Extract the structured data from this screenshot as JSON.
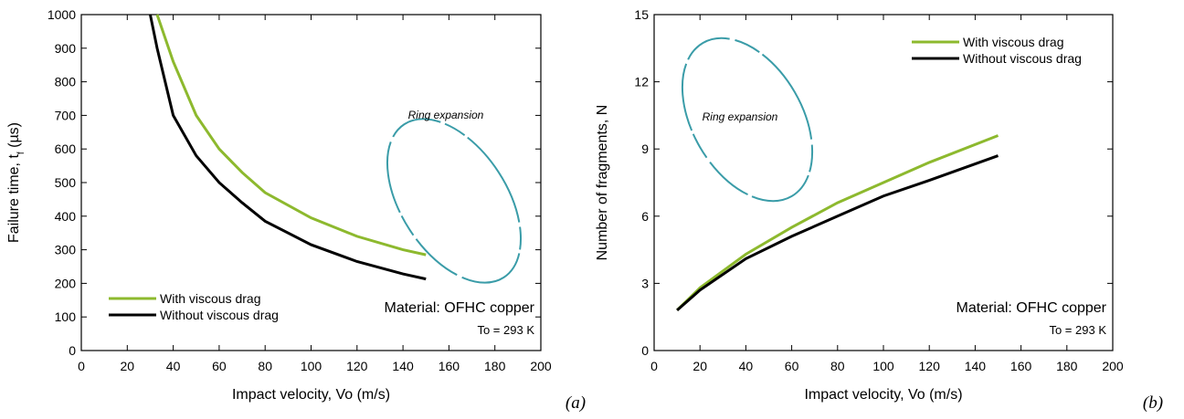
{
  "chart_data": [
    {
      "type": "line",
      "panel_label": "(a)",
      "xlabel": "Impact velocity, Vo (m/s)",
      "ylabel": {
        "main": "Failure time, t",
        "sub": "f",
        "end": " (µs)"
      },
      "annotations": {
        "inset": "Ring expansion",
        "material": "Material: OFHC copper",
        "temperature": "To = 293 K"
      },
      "x": [
        30,
        33,
        40,
        50,
        60,
        70,
        80,
        100,
        120,
        140,
        150
      ],
      "series": [
        {
          "name": "With viscous drag",
          "color": "#8db92e",
          "values": [
            null,
            1000,
            860,
            700,
            600,
            530,
            470,
            395,
            340,
            300,
            285
          ]
        },
        {
          "name": "Without viscous drag",
          "color": "#000000",
          "values": [
            1000,
            900,
            700,
            580,
            500,
            440,
            385,
            315,
            265,
            228,
            213
          ]
        }
      ],
      "xlim": [
        0,
        200
      ],
      "xticks": [
        0,
        20,
        40,
        60,
        80,
        100,
        120,
        140,
        160,
        180,
        200
      ],
      "ylim": [
        0,
        1000
      ],
      "yticks": [
        0,
        100,
        200,
        300,
        400,
        500,
        600,
        700,
        800,
        900,
        1000
      ],
      "legend": "lower left"
    },
    {
      "type": "line",
      "panel_label": "(b)",
      "xlabel": "Impact velocity, Vo (m/s)",
      "ylabel": {
        "main": "Number of fragments, N"
      },
      "annotations": {
        "inset": "Ring expansion",
        "material": "Material: OFHC copper",
        "temperature": "To = 293 K"
      },
      "x": [
        10,
        20,
        40,
        60,
        80,
        100,
        120,
        150
      ],
      "series": [
        {
          "name": "With viscous drag",
          "color": "#8db92e",
          "values": [
            1.8,
            2.8,
            4.3,
            5.5,
            6.6,
            7.5,
            8.4,
            9.6
          ]
        },
        {
          "name": "Without viscous drag",
          "color": "#000000",
          "values": [
            1.8,
            2.7,
            4.1,
            5.1,
            6.0,
            6.9,
            7.6,
            8.7
          ]
        }
      ],
      "xlim": [
        0,
        200
      ],
      "xticks": [
        0,
        20,
        40,
        60,
        80,
        100,
        120,
        140,
        160,
        180,
        200
      ],
      "ylim": [
        0,
        15
      ],
      "yticks": [
        0,
        3,
        6,
        9,
        12,
        15
      ],
      "legend": "upper right"
    }
  ]
}
